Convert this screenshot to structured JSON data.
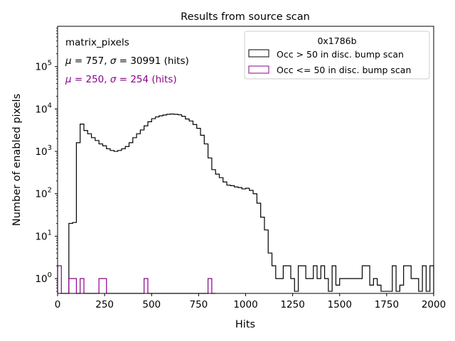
{
  "chart_data": {
    "type": "histogram",
    "title": "Results from source scan",
    "xlabel": "Hits",
    "ylabel": "Number of enabled pixels",
    "xlim": [
      0,
      2000
    ],
    "ylim_log10": [
      -0.35,
      5.95
    ],
    "yscale": "log",
    "bin_width": 20,
    "x_ticks": [
      0,
      250,
      500,
      750,
      1000,
      1250,
      1500,
      1750,
      2000
    ],
    "x_tick_labels": [
      "0",
      "250",
      "500",
      "750",
      "1000",
      "1250",
      "1500",
      "1750",
      "2000"
    ],
    "y_ticks_log10": [
      0,
      1,
      2,
      3,
      4,
      5
    ],
    "y_tick_base": "10",
    "y_tick_exponents": [
      "0",
      "1",
      "2",
      "3",
      "4",
      "5"
    ],
    "annotations": {
      "name": "matrix_pixels",
      "stats_black_mu": "757",
      "stats_black_sigma": "30991",
      "stats_purple_mu": "250",
      "stats_purple_sigma": "254",
      "mu_symbol": "μ",
      "sigma_symbol": "σ",
      "eq": " = ",
      "sep": ", ",
      "units": " (hits)"
    },
    "legend": {
      "title": "0x1786b",
      "placement": "top-right",
      "entries": [
        "Occ > 50 in disc. bump scan",
        "Occ <= 50 in disc. bump scan"
      ]
    },
    "colors": {
      "series_black": "#000000",
      "series_purple": "#8b008b",
      "legend_border": "#cccccc",
      "axis": "#000000"
    },
    "series": [
      {
        "name": "Occ > 50 in disc. bump scan",
        "color": "#000000",
        "bins": [
          [
            60,
            20
          ],
          [
            80,
            21
          ],
          [
            100,
            1600
          ],
          [
            120,
            4400
          ],
          [
            140,
            3100
          ],
          [
            160,
            2600
          ],
          [
            180,
            2100
          ],
          [
            200,
            1800
          ],
          [
            220,
            1500
          ],
          [
            240,
            1350
          ],
          [
            260,
            1150
          ],
          [
            280,
            1050
          ],
          [
            300,
            1000
          ],
          [
            320,
            1050
          ],
          [
            340,
            1150
          ],
          [
            360,
            1300
          ],
          [
            380,
            1600
          ],
          [
            400,
            2100
          ],
          [
            420,
            2600
          ],
          [
            440,
            3200
          ],
          [
            460,
            4000
          ],
          [
            480,
            5000
          ],
          [
            500,
            5900
          ],
          [
            520,
            6500
          ],
          [
            540,
            6900
          ],
          [
            560,
            7200
          ],
          [
            580,
            7500
          ],
          [
            600,
            7600
          ],
          [
            620,
            7500
          ],
          [
            640,
            7300
          ],
          [
            660,
            6700
          ],
          [
            680,
            5800
          ],
          [
            700,
            5200
          ],
          [
            720,
            4300
          ],
          [
            740,
            3500
          ],
          [
            760,
            2400
          ],
          [
            780,
            1500
          ],
          [
            800,
            700
          ],
          [
            820,
            370
          ],
          [
            840,
            290
          ],
          [
            860,
            240
          ],
          [
            880,
            190
          ],
          [
            900,
            160
          ],
          [
            920,
            155
          ],
          [
            940,
            145
          ],
          [
            960,
            140
          ],
          [
            980,
            130
          ],
          [
            1000,
            135
          ],
          [
            1020,
            120
          ],
          [
            1040,
            100
          ],
          [
            1060,
            60
          ],
          [
            1080,
            28
          ],
          [
            1100,
            14
          ],
          [
            1120,
            4
          ],
          [
            1140,
            2
          ],
          [
            1160,
            1
          ],
          [
            1180,
            1
          ],
          [
            1200,
            2
          ],
          [
            1220,
            2
          ],
          [
            1240,
            1
          ],
          [
            1260,
            0.5
          ],
          [
            1280,
            2
          ],
          [
            1300,
            2
          ],
          [
            1320,
            1
          ],
          [
            1340,
            1
          ],
          [
            1360,
            2
          ],
          [
            1380,
            1
          ],
          [
            1400,
            2
          ],
          [
            1420,
            1
          ],
          [
            1440,
            0.5
          ],
          [
            1460,
            2
          ],
          [
            1480,
            0.7
          ],
          [
            1500,
            1
          ],
          [
            1520,
            1
          ],
          [
            1540,
            1
          ],
          [
            1560,
            1
          ],
          [
            1580,
            1
          ],
          [
            1600,
            1
          ],
          [
            1620,
            2
          ],
          [
            1640,
            2
          ],
          [
            1660,
            0.7
          ],
          [
            1680,
            1
          ],
          [
            1700,
            0.7
          ],
          [
            1720,
            0.5
          ],
          [
            1740,
            0.5
          ],
          [
            1760,
            0.5
          ],
          [
            1780,
            2
          ],
          [
            1800,
            0.5
          ],
          [
            1820,
            0.7
          ],
          [
            1840,
            2
          ],
          [
            1860,
            2
          ],
          [
            1880,
            1
          ],
          [
            1900,
            1
          ],
          [
            1920,
            0.5
          ],
          [
            1940,
            2
          ],
          [
            1960,
            0.5
          ],
          [
            1980,
            2
          ]
        ]
      },
      {
        "name": "Occ <= 50 in disc. bump scan",
        "color": "#8b008b",
        "bins": [
          [
            0,
            2
          ],
          [
            20,
            0
          ],
          [
            40,
            0
          ],
          [
            60,
            1
          ],
          [
            80,
            1
          ],
          [
            100,
            0
          ],
          [
            120,
            1
          ],
          [
            140,
            0
          ],
          [
            160,
            0
          ],
          [
            180,
            0
          ],
          [
            200,
            0
          ],
          [
            220,
            1
          ],
          [
            240,
            1
          ],
          [
            260,
            0
          ],
          [
            280,
            0
          ],
          [
            300,
            0
          ],
          [
            320,
            0
          ],
          [
            340,
            0
          ],
          [
            360,
            0
          ],
          [
            380,
            0
          ],
          [
            400,
            0
          ],
          [
            420,
            0
          ],
          [
            440,
            0
          ],
          [
            460,
            1
          ],
          [
            480,
            0
          ],
          [
            500,
            0
          ],
          [
            520,
            0
          ],
          [
            540,
            0
          ],
          [
            560,
            0
          ],
          [
            580,
            0
          ],
          [
            600,
            0
          ],
          [
            620,
            0
          ],
          [
            640,
            0
          ],
          [
            660,
            0
          ],
          [
            680,
            0
          ],
          [
            700,
            0
          ],
          [
            720,
            0
          ],
          [
            740,
            0
          ],
          [
            760,
            0
          ],
          [
            780,
            0
          ],
          [
            800,
            1
          ],
          [
            820,
            0
          ]
        ]
      }
    ]
  }
}
